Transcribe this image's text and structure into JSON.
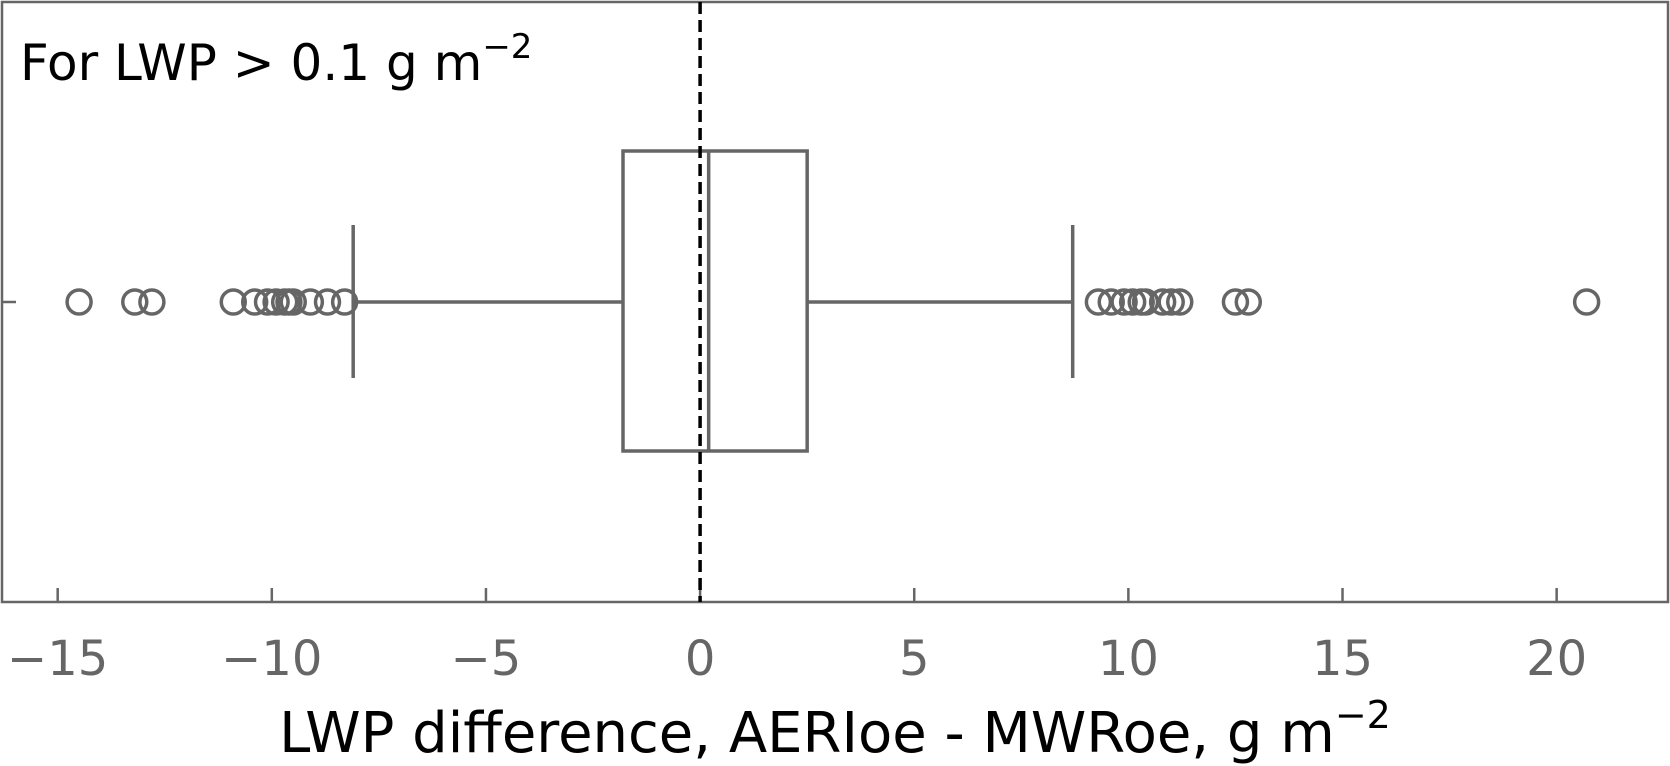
{
  "chart_data": {
    "type": "boxplot",
    "orientation": "horizontal",
    "annotation": {
      "text": "For LWP > 0.1 g m",
      "superscript": "−2"
    },
    "xlabel": {
      "text": "LWP difference, AERIoe - MWRoe, g m",
      "superscript": "−2"
    },
    "ylabel": "",
    "xlim": [
      -16.3,
      22.6
    ],
    "xticks": [
      -15,
      -10,
      -5,
      0,
      5,
      10,
      15,
      20
    ],
    "xtick_labels": [
      "−15",
      "−10",
      "−5",
      "0",
      "5",
      "10",
      "15",
      "20"
    ],
    "reference_line": {
      "x": 0,
      "style": "dashed"
    },
    "box": {
      "whisker_low": -8.1,
      "q1": -1.8,
      "median": 0.2,
      "q3": 2.5,
      "whisker_high": 8.7
    },
    "outliers": [
      -14.5,
      -13.2,
      -12.8,
      -10.9,
      -10.4,
      -10.1,
      -9.9,
      -9.7,
      -9.6,
      -9.5,
      -9.1,
      -8.7,
      -8.3,
      9.3,
      9.6,
      9.9,
      10.1,
      10.3,
      10.4,
      10.8,
      11.0,
      11.2,
      12.5,
      12.8,
      20.7
    ],
    "colors": {
      "box": "#666666",
      "reference": "#000000",
      "axis": "#666666",
      "text": "#000000",
      "tick_text": "#666666"
    }
  }
}
